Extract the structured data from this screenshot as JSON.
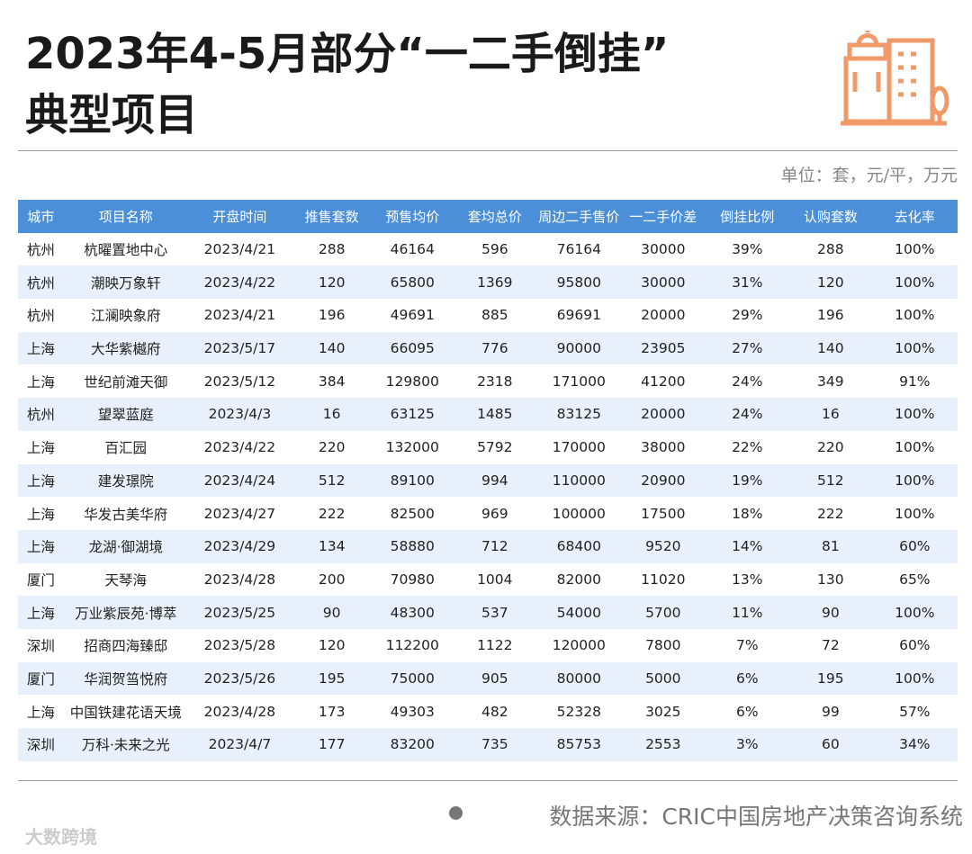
{
  "header": {
    "title_lines": [
      "2023年4-5月部分“一二手倒挂”",
      "典型项目"
    ],
    "unit": "单位：套，元/平，万元"
  },
  "table": {
    "columns": [
      "城市",
      "项目名称",
      "开盘时间",
      "推售套数",
      "预售均价",
      "套均总价",
      "周边二手售价",
      "一二手价差",
      "倒挂比例",
      "认购套数",
      "去化率"
    ],
    "rows": [
      [
        "杭州",
        "杭曜置地中心",
        "2023/4/21",
        "288",
        "46164",
        "596",
        "76164",
        "30000",
        "39%",
        "288",
        "100%"
      ],
      [
        "杭州",
        "潮映万象轩",
        "2023/4/22",
        "120",
        "65800",
        "1369",
        "95800",
        "30000",
        "31%",
        "120",
        "100%"
      ],
      [
        "杭州",
        "江澜映象府",
        "2023/4/21",
        "196",
        "49691",
        "885",
        "69691",
        "20000",
        "29%",
        "196",
        "100%"
      ],
      [
        "上海",
        "大华紫樾府",
        "2023/5/17",
        "140",
        "66095",
        "776",
        "90000",
        "23905",
        "27%",
        "140",
        "100%"
      ],
      [
        "上海",
        "世纪前滩天御",
        "2023/5/12",
        "384",
        "129800",
        "2318",
        "171000",
        "41200",
        "24%",
        "349",
        "91%"
      ],
      [
        "杭州",
        "望翠蓝庭",
        "2023/4/3",
        "16",
        "63125",
        "1485",
        "83125",
        "20000",
        "24%",
        "16",
        "100%"
      ],
      [
        "上海",
        "百汇园",
        "2023/4/22",
        "220",
        "132000",
        "5792",
        "170000",
        "38000",
        "22%",
        "220",
        "100%"
      ],
      [
        "上海",
        "建发璟院",
        "2023/4/24",
        "512",
        "89100",
        "994",
        "110000",
        "20900",
        "19%",
        "512",
        "100%"
      ],
      [
        "上海",
        "华发古美华府",
        "2023/4/27",
        "222",
        "82500",
        "969",
        "100000",
        "17500",
        "18%",
        "222",
        "100%"
      ],
      [
        "上海",
        "龙湖·御湖境",
        "2023/4/29",
        "134",
        "58880",
        "712",
        "68400",
        "9520",
        "14%",
        "81",
        "60%"
      ],
      [
        "厦门",
        "天琴海",
        "2023/4/28",
        "200",
        "70980",
        "1004",
        "82000",
        "11020",
        "13%",
        "130",
        "65%"
      ],
      [
        "上海",
        "万业紫辰苑·博萃",
        "2023/5/25",
        "90",
        "48300",
        "537",
        "54000",
        "5700",
        "11%",
        "90",
        "100%"
      ],
      [
        "深圳",
        "招商四海臻邸",
        "2023/5/28",
        "120",
        "112200",
        "1122",
        "120000",
        "7800",
        "7%",
        "72",
        "60%"
      ],
      [
        "厦门",
        "华润贺筜悦府",
        "2023/5/26",
        "195",
        "75000",
        "905",
        "80000",
        "5000",
        "6%",
        "195",
        "100%"
      ],
      [
        "上海",
        "中国铁建花语天境",
        "2023/4/28",
        "173",
        "49303",
        "482",
        "52328",
        "3025",
        "6%",
        "99",
        "57%"
      ],
      [
        "深圳",
        "万科·未来之光",
        "2023/4/7",
        "177",
        "83200",
        "735",
        "85753",
        "2553",
        "3%",
        "60",
        "34%"
      ]
    ]
  },
  "footer": {
    "source": "数据来源：CRIC中国房地产决策咨询系统",
    "logo": "大数跨境"
  }
}
